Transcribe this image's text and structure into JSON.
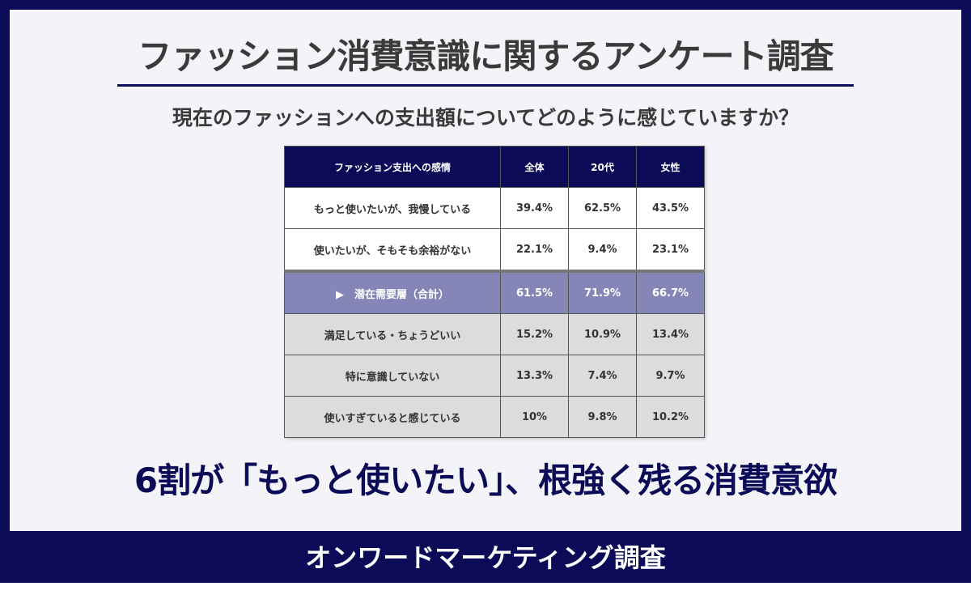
{
  "header": {
    "title": "ファッション消費意識に関するアンケート調査",
    "question": "現在のファッションへの支出額についてどのように感じていますか？"
  },
  "table": {
    "columns": [
      "ファッション支出への感情",
      "全体",
      "20代",
      "女性"
    ],
    "rows": [
      [
        "もっと使いたいが、我慢している",
        "39.4%",
        "62.5%",
        "43.5%"
      ],
      [
        "使いたいが、そもそも余裕がない",
        "22.1%",
        "9.4%",
        "23.1%"
      ],
      [
        "▶　潜在需要層（合計）",
        "61.5%",
        "71.9%",
        "66.7%"
      ],
      [
        "満足している・ちょうどいい",
        "15.2%",
        "10.9%",
        "13.4%"
      ],
      [
        "特に意識していない",
        "13.3%",
        "7.4%",
        "9.7%"
      ],
      [
        "使いすぎていると感じている",
        "10%",
        "9.8%",
        "10.2%"
      ]
    ]
  },
  "headline": "6割が「もっと使いたい」、根強く残る消費意欲",
  "footer": "オンワードマーケティング調査"
}
